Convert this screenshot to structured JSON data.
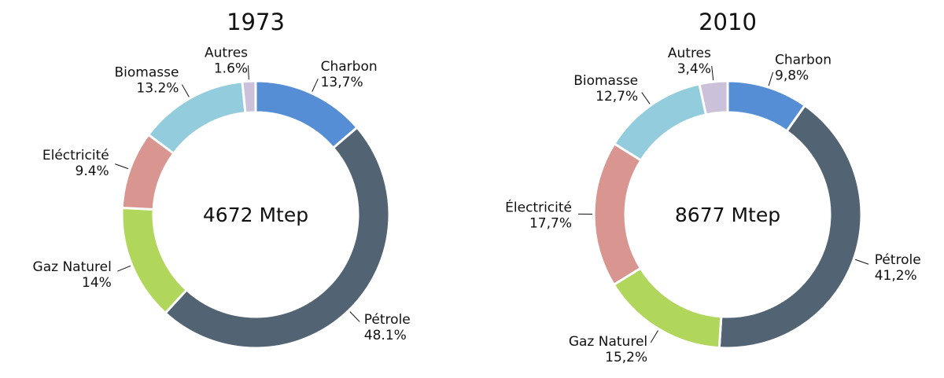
{
  "chart_data": [
    {
      "type": "pie",
      "title": "1973",
      "center_label": "4672 Mtep",
      "categories": [
        "Charbon",
        "Pétrole",
        "Gaz Naturel",
        "Eléctricité",
        "Biomasse",
        "Autres"
      ],
      "values": [
        13.7,
        48.1,
        14,
        9.4,
        13.2,
        1.6
      ],
      "value_labels": [
        "13,7%",
        "48.1%",
        "14%",
        "9.4%",
        "13.2%",
        "1.6%"
      ],
      "colors": [
        "#558ed5",
        "#526373",
        "#b0d65c",
        "#d99690",
        "#93cddd",
        "#ccc1da"
      ]
    },
    {
      "type": "pie",
      "title": "2010",
      "center_label": "8677 Mtep",
      "categories": [
        "Charbon",
        "Pétrole",
        "Gaz Naturel",
        "Électricité",
        "Biomasse",
        "Autres"
      ],
      "values": [
        9.8,
        41.2,
        15.2,
        17.7,
        12.7,
        3.4
      ],
      "value_labels": [
        "9,8%",
        "41,2%",
        "15,2%",
        "17,7%",
        "12,7%",
        "3,4%"
      ],
      "colors": [
        "#558ed5",
        "#526373",
        "#b0d65c",
        "#d99690",
        "#93cddd",
        "#ccc1da"
      ]
    }
  ]
}
